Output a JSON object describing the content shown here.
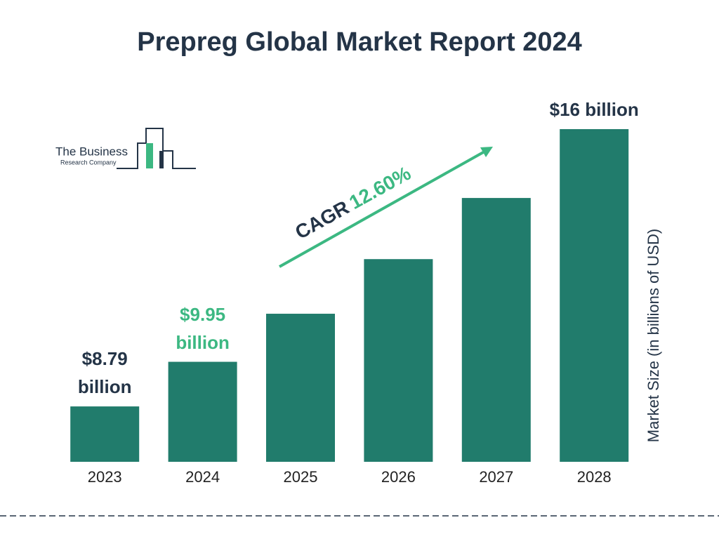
{
  "chart_data": {
    "type": "bar",
    "title": "Prepreg Global Market Report 2024",
    "logo": {
      "line1": "The Business",
      "line2": "Research Company"
    },
    "y_label": "Market Size (in billions of USD)",
    "categories": [
      "2023",
      "2024",
      "2025",
      "2026",
      "2027",
      "2028"
    ],
    "values": [
      8.79,
      9.95,
      11.2,
      12.62,
      14.21,
      16
    ],
    "value_labels": [
      "$8.79 billion",
      "$9.95 billion",
      null,
      null,
      null,
      "$16 billion"
    ],
    "color": "#217c6c",
    "ylim": [
      7.35,
      16
    ],
    "annotation": {
      "label": "CAGR",
      "value": "12.60%"
    }
  }
}
